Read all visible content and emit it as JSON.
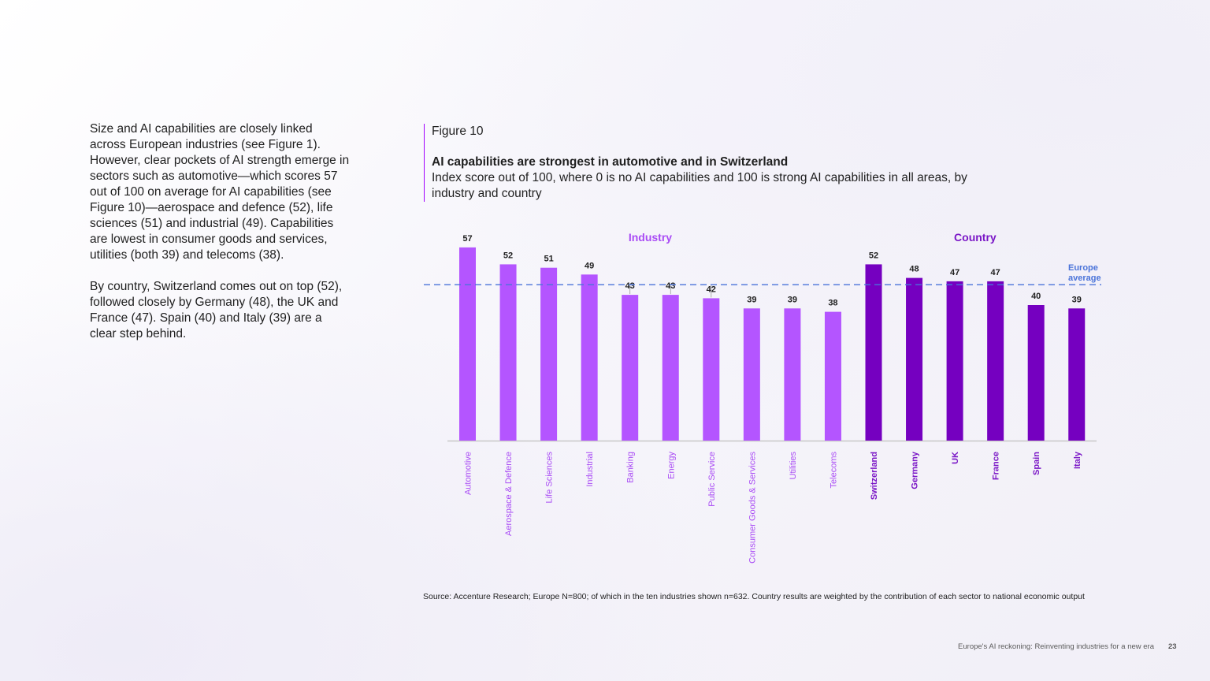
{
  "body_text": {
    "paragraph1": "Size and AI capabilities are closely linked across European industries (see Figure 1). However, clear pockets of AI strength emerge in sectors such as automotive—which scores 57 out of 100 on average for AI capabilities (see Figure 10)—aerospace and defence (52), life sciences (51) and industrial (49). Capabilities are lowest in consumer goods and services, utilities (both 39) and telecoms (38).",
    "paragraph2": "By country, Switzerland comes out on top (52), followed closely by Germany (48), the UK and France (47). Spain (40) and Italy (39) are a clear step behind."
  },
  "figure": {
    "label": "Figure 10",
    "title": "AI capabilities are strongest in automotive and in Switzerland",
    "subtitle": "Index score out of 100, where 0 is no AI capabilities and 100 is strong AI capabilities in all areas, by industry and country"
  },
  "chart_data": {
    "type": "bar",
    "categories": [
      "Automotive",
      "Aerospace & Defence",
      "Life Sciences",
      "Industrial",
      "Banking",
      "Energy",
      "Public Service",
      "Consumer Goods & Services",
      "Utilities",
      "Telecoms",
      "Switzerland",
      "Germany",
      "UK",
      "France",
      "Spain",
      "Italy"
    ],
    "values": [
      57,
      52,
      51,
      49,
      43,
      43,
      42,
      39,
      39,
      38,
      52,
      48,
      47,
      47,
      40,
      39
    ],
    "groups": [
      {
        "name": "Industry",
        "count": 10,
        "color": "#b455ff",
        "label_color": "#a94bf5"
      },
      {
        "name": "Country",
        "count": 6,
        "color": "#7500c0",
        "label_color": "#7a16c6"
      }
    ],
    "reference_line": {
      "value": 46,
      "label": "Europe average",
      "color": "#4a73d9"
    },
    "ylim": [
      0,
      60
    ],
    "xlabel": "",
    "ylabel": "",
    "grid": false,
    "legend": "none"
  },
  "source": "Source: Accenture Research; Europe N=800; of which in the ten industries shown n=632. Country results are weighted by the contribution of each sector to national economic output",
  "footer": {
    "publication": "Europe's AI reckoning: Reinventing industries for a new era",
    "page_number": "23"
  }
}
